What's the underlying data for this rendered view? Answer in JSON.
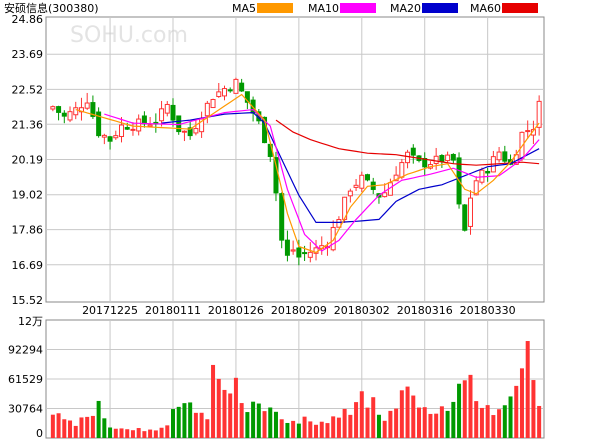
{
  "header": {
    "stock_name": "安硕信息",
    "code": "(300380)",
    "watermark": "SOHU.com",
    "legend": [
      {
        "label": "MA5",
        "color": "#ff9900"
      },
      {
        "label": "MA10",
        "color": "#ff00ff"
      },
      {
        "label": "MA20",
        "color": "#0000cc"
      },
      {
        "label": "MA60",
        "color": "#e60000"
      }
    ]
  },
  "colors": {
    "up": "#ff3333",
    "down": "#009900",
    "grid": "#c8c8c8",
    "frame": "#888888"
  },
  "chart_data": [
    {
      "type": "candlestick",
      "y_ticks": [
        "24.86",
        "23.69",
        "22.52",
        "21.36",
        "20.19",
        "19.02",
        "17.86",
        "16.69",
        "15.52"
      ],
      "ylim": [
        15.52,
        24.86
      ],
      "x_tick_labels": [
        "20171225",
        "20180111",
        "20180126",
        "20180209",
        "20180302",
        "20180316",
        "20180330"
      ],
      "x_tick_positions": [
        10,
        21,
        32,
        43,
        54,
        65,
        76
      ],
      "n": 86,
      "key_closes": [
        [
          0,
          21.95
        ],
        [
          2,
          21.6
        ],
        [
          4,
          21.85
        ],
        [
          6,
          22.2
        ],
        [
          8,
          21.1
        ],
        [
          10,
          20.85
        ],
        [
          12,
          21.3
        ],
        [
          14,
          21.35
        ],
        [
          16,
          21.4
        ],
        [
          18,
          21.45
        ],
        [
          20,
          22.0
        ],
        [
          22,
          21.2
        ],
        [
          24,
          21.0
        ],
        [
          26,
          21.7
        ],
        [
          28,
          22.3
        ],
        [
          30,
          22.55
        ],
        [
          32,
          22.75
        ],
        [
          34,
          22.1
        ],
        [
          36,
          21.4
        ],
        [
          38,
          20.4
        ],
        [
          39,
          19.1
        ],
        [
          40,
          17.5
        ],
        [
          41,
          16.95
        ],
        [
          42,
          17.2
        ],
        [
          43,
          16.95
        ],
        [
          44,
          17.05
        ],
        [
          46,
          17.2
        ],
        [
          48,
          17.45
        ],
        [
          50,
          18.3
        ],
        [
          52,
          19.25
        ],
        [
          54,
          19.55
        ],
        [
          56,
          19.2
        ],
        [
          57,
          19.0
        ],
        [
          58,
          19.1
        ],
        [
          60,
          19.8
        ],
        [
          62,
          20.35
        ],
        [
          64,
          20.05
        ],
        [
          66,
          20.1
        ],
        [
          68,
          20.2
        ],
        [
          70,
          20.15
        ],
        [
          71,
          18.6
        ],
        [
          72,
          17.8
        ],
        [
          73,
          18.95
        ],
        [
          74,
          19.5
        ],
        [
          76,
          19.9
        ],
        [
          78,
          20.45
        ],
        [
          80,
          20.0
        ],
        [
          82,
          21.05
        ],
        [
          84,
          21.3
        ],
        [
          85,
          22.0
        ]
      ],
      "ma5_key": [
        [
          4,
          21.85
        ],
        [
          14,
          21.3
        ],
        [
          24,
          21.2
        ],
        [
          33,
          22.35
        ],
        [
          37,
          21.5
        ],
        [
          39,
          20.0
        ],
        [
          41,
          18.4
        ],
        [
          43,
          17.3
        ],
        [
          46,
          17.1
        ],
        [
          49,
          17.5
        ],
        [
          52,
          18.6
        ],
        [
          55,
          19.3
        ],
        [
          58,
          19.35
        ],
        [
          62,
          19.7
        ],
        [
          66,
          19.95
        ],
        [
          69,
          20.05
        ],
        [
          72,
          19.2
        ],
        [
          74,
          19.05
        ],
        [
          77,
          19.5
        ],
        [
          80,
          20.1
        ],
        [
          83,
          20.9
        ],
        [
          85,
          21.4
        ]
      ],
      "ma10_key": [
        [
          9,
          21.7
        ],
        [
          14,
          21.4
        ],
        [
          22,
          21.35
        ],
        [
          30,
          21.75
        ],
        [
          35,
          21.85
        ],
        [
          38,
          21.3
        ],
        [
          41,
          19.2
        ],
        [
          44,
          17.7
        ],
        [
          47,
          17.15
        ],
        [
          50,
          17.5
        ],
        [
          53,
          18.2
        ],
        [
          57,
          19.0
        ],
        [
          61,
          19.5
        ],
        [
          66,
          19.7
        ],
        [
          70,
          19.9
        ],
        [
          74,
          19.6
        ],
        [
          78,
          19.65
        ],
        [
          82,
          20.2
        ],
        [
          85,
          20.85
        ]
      ],
      "ma20_key": [
        [
          19,
          21.4
        ],
        [
          24,
          21.5
        ],
        [
          30,
          21.7
        ],
        [
          35,
          21.75
        ],
        [
          37,
          21.4
        ],
        [
          40,
          20.2
        ],
        [
          43,
          19.0
        ],
        [
          46,
          18.1
        ],
        [
          50,
          18.1
        ],
        [
          54,
          18.15
        ],
        [
          57,
          18.2
        ],
        [
          60,
          18.8
        ],
        [
          64,
          19.2
        ],
        [
          68,
          19.35
        ],
        [
          72,
          19.65
        ],
        [
          76,
          19.95
        ],
        [
          80,
          20.05
        ],
        [
          85,
          20.55
        ]
      ],
      "ma60_key": [
        [
          39,
          21.5
        ],
        [
          42,
          21.1
        ],
        [
          45,
          20.85
        ],
        [
          50,
          20.55
        ],
        [
          55,
          20.4
        ],
        [
          60,
          20.35
        ],
        [
          65,
          20.2
        ],
        [
          70,
          20.05
        ],
        [
          74,
          20.0
        ],
        [
          78,
          20.05
        ],
        [
          82,
          20.1
        ],
        [
          85,
          20.05
        ]
      ]
    },
    {
      "type": "bar",
      "unit_label": "12万",
      "y_ticks": [
        "92294",
        "61529",
        "30764",
        "0"
      ],
      "ylim": [
        0,
        123000
      ],
      "key_volumes": [
        [
          0,
          32000
        ],
        [
          2,
          25000
        ],
        [
          4,
          14000
        ],
        [
          6,
          21000
        ],
        [
          8,
          35000
        ],
        [
          10,
          12000
        ],
        [
          14,
          8000
        ],
        [
          18,
          10000
        ],
        [
          20,
          16000
        ],
        [
          21,
          33000
        ],
        [
          23,
          38000
        ],
        [
          25,
          26000
        ],
        [
          27,
          18000
        ],
        [
          28,
          82000
        ],
        [
          29,
          55000
        ],
        [
          30,
          51000
        ],
        [
          32,
          55000
        ],
        [
          34,
          28000
        ],
        [
          36,
          36000
        ],
        [
          38,
          29000
        ],
        [
          40,
          20000
        ],
        [
          44,
          20000
        ],
        [
          48,
          16000
        ],
        [
          50,
          28000
        ],
        [
          52,
          25000
        ],
        [
          54,
          43000
        ],
        [
          56,
          37000
        ],
        [
          58,
          19000
        ],
        [
          60,
          28000
        ],
        [
          62,
          56000
        ],
        [
          64,
          38000
        ],
        [
          66,
          24000
        ],
        [
          68,
          31000
        ],
        [
          70,
          40000
        ],
        [
          71,
          56000
        ],
        [
          72,
          80000
        ],
        [
          74,
          44000
        ],
        [
          76,
          28000
        ],
        [
          78,
          27000
        ],
        [
          80,
          37000
        ],
        [
          82,
          96000
        ],
        [
          83,
          90000
        ],
        [
          84,
          51000
        ],
        [
          85,
          31000
        ]
      ]
    }
  ]
}
